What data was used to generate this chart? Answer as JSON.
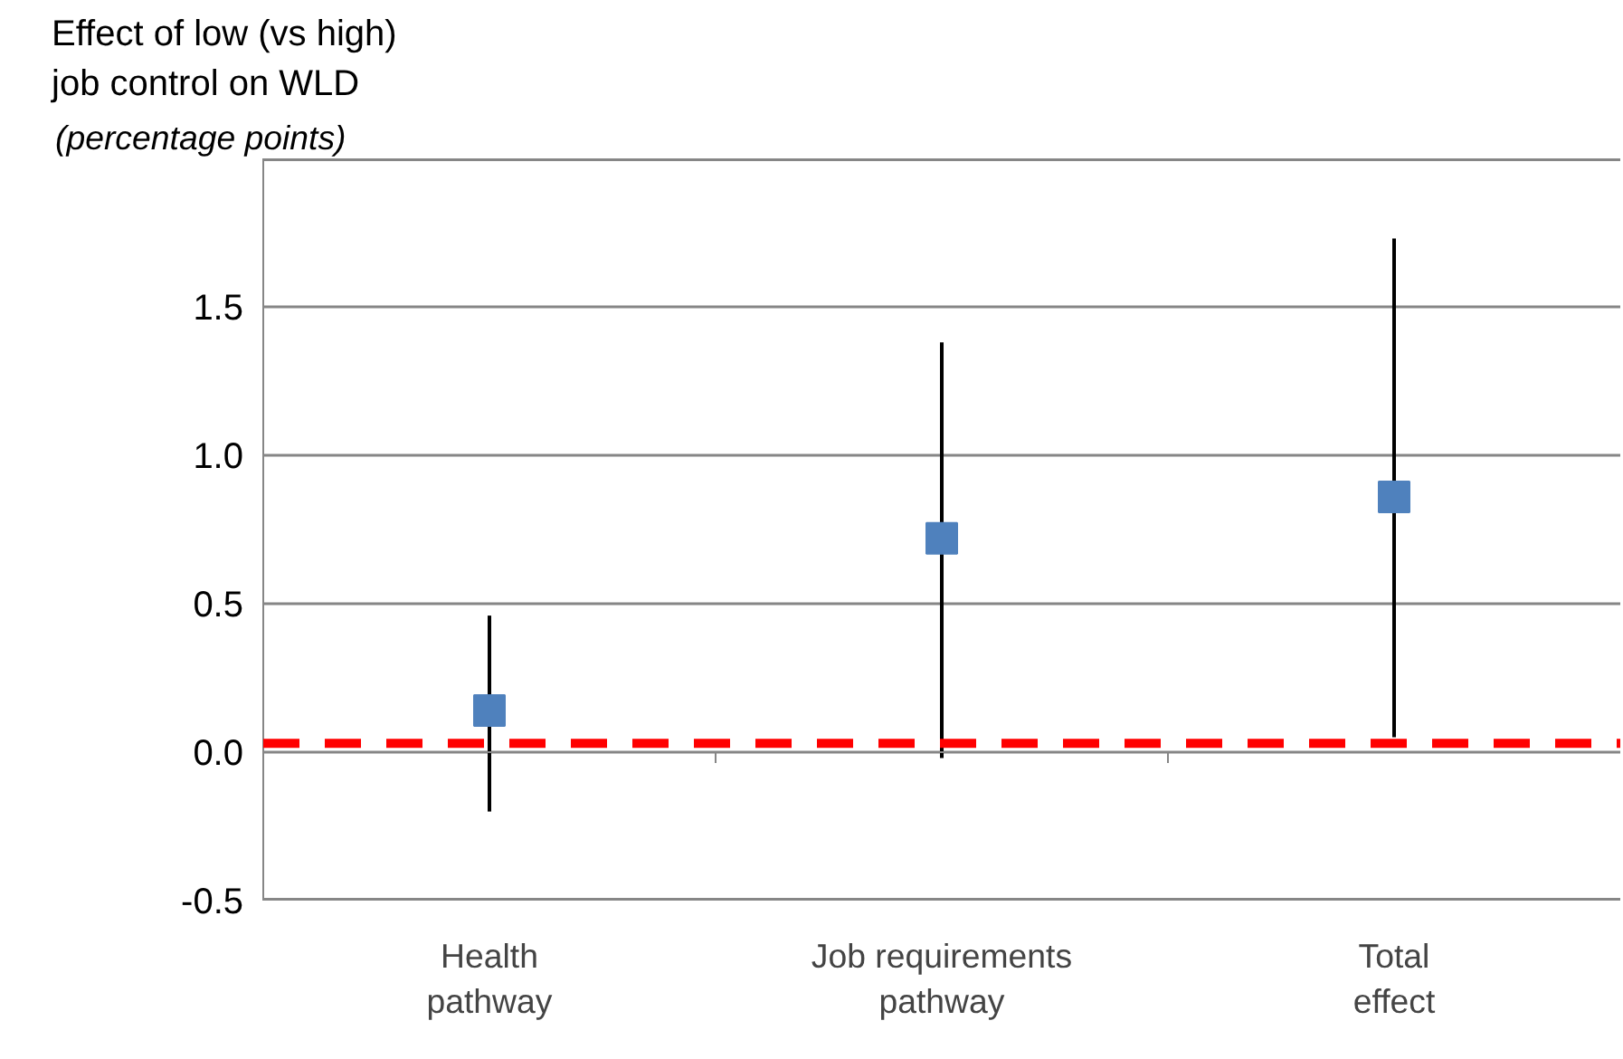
{
  "chart_data": {
    "type": "scatter",
    "title": "Effect  of  low (vs high)\njob control on WLD",
    "subtitle": "(percentage points)",
    "categories": [
      "Health\npathway",
      "Job requirements\npathway",
      "Total\neffect"
    ],
    "series": [
      {
        "color": "#4f81bd",
        "values": [
          0.14,
          0.72,
          0.86
        ],
        "errors": [
          [
            -0.2,
            0.46
          ],
          [
            -0.02,
            1.38
          ],
          [
            0.05,
            1.73
          ]
        ]
      }
    ],
    "marker": "square",
    "ylim": [
      -0.5,
      2.0
    ],
    "yticks": [
      -0.5,
      {
        "value": 0.0,
        "label": "0.0"
      },
      0.5,
      {
        "value": 1.0,
        "label": "1.0"
      },
      1.5,
      {
        "value": 2.0,
        "label": null
      }
    ],
    "ref_lines": [
      {
        "axis": "y",
        "value": 0.03,
        "color": "#ff0000",
        "line_style": "dashed"
      }
    ],
    "grid": "y"
  }
}
